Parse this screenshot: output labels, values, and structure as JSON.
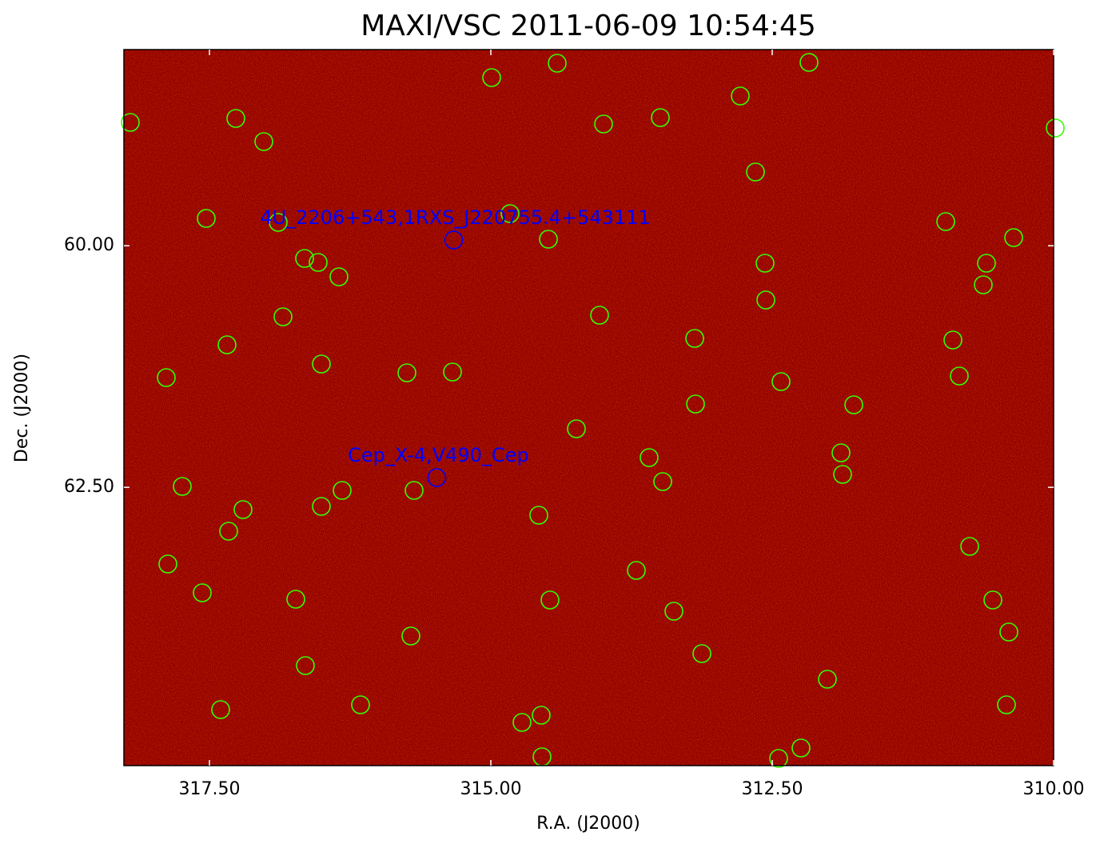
{
  "chart_data": {
    "type": "image",
    "title": "MAXI/VSC 2011-06-09 10:54:45",
    "x_label": "R.A. (J2000)",
    "y_label": "Dec. (J2000)",
    "xlim": [
      318.26,
      310.0
    ],
    "ylim": [
      57.97,
      65.38
    ],
    "xticks": [
      {
        "value": 317.5,
        "label": "317.50"
      },
      {
        "value": 315,
        "label": "315.00"
      },
      {
        "value": 312.5,
        "label": "312.50"
      },
      {
        "value": 310,
        "label": "310.00"
      }
    ],
    "yticks": [
      {
        "value": 60,
        "label": "60.00"
      },
      {
        "value": 62.5,
        "label": "62.50"
      }
    ],
    "sources": [
      {
        "name": "4U_2206+543,1RXS_J220755.4+543111",
        "ra": 315.33,
        "dec": 59.94,
        "color": "#0000ff"
      },
      {
        "name": "Cep_X-4,V490_Cep",
        "ra": 315.48,
        "dec": 62.4,
        "color": "#0000ff"
      }
    ]
  }
}
